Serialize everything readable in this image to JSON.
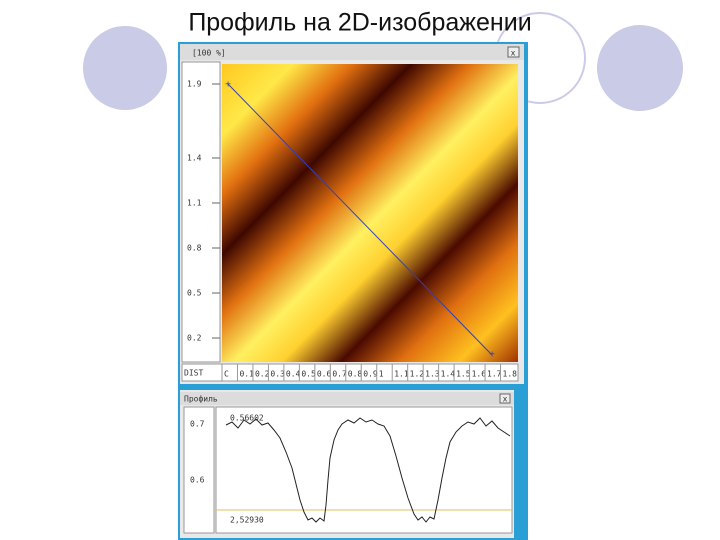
{
  "header": {
    "title": "Профиль на 2D-изображении"
  },
  "image_window": {
    "zoom": "[100 %]",
    "close": "x",
    "y_ticks": [
      "1.9",
      "1.4",
      "1.1",
      "0.8",
      "0.5",
      "0.2"
    ],
    "x_axis_label": "DIST",
    "x_ticks": [
      "C",
      "0.1",
      "0.2",
      "0.3",
      "0.4",
      "0.5",
      "0.6",
      "0.7",
      "0.8",
      "0.9",
      "1",
      "1.1",
      "1.2",
      "1.3",
      "1.4",
      "1.5",
      "1.6",
      "1.7",
      "1.8"
    ]
  },
  "profile_window": {
    "title": "Профиль",
    "close": "x",
    "y_ticks": [
      "0.7",
      "0.6"
    ],
    "max_label": "0.56602",
    "min_label": "2,52930"
  }
}
